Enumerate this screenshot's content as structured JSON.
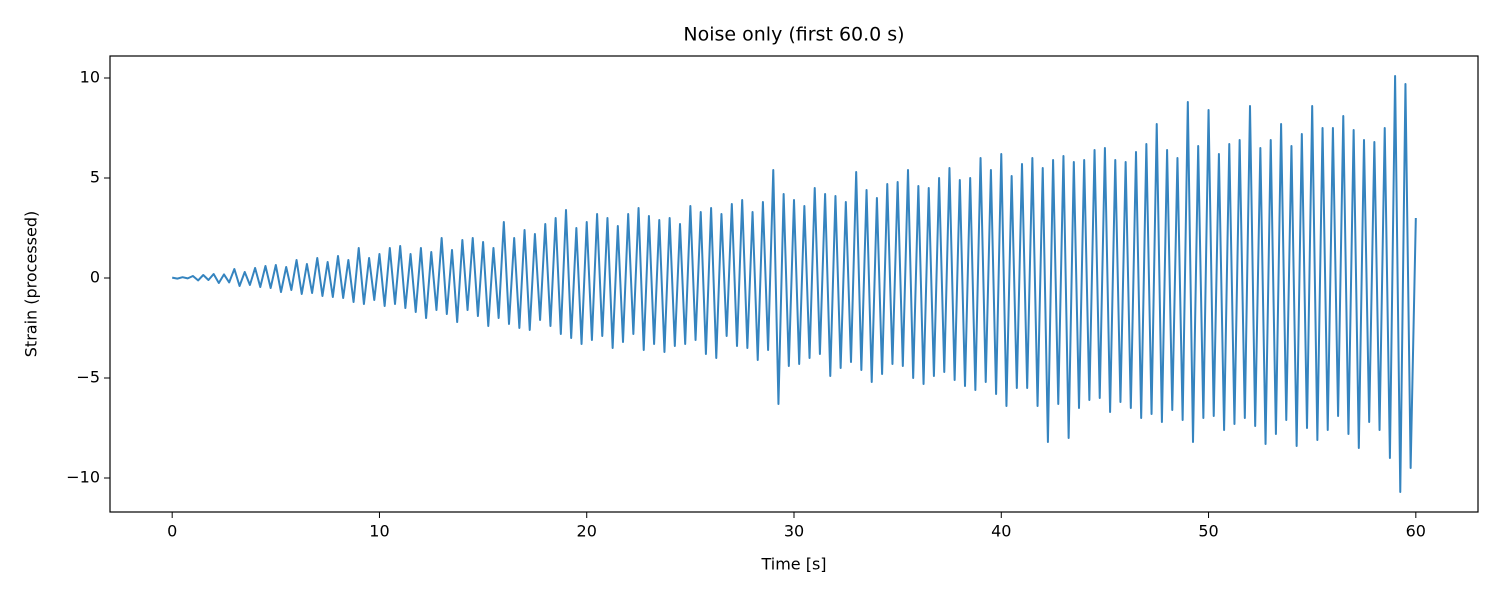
{
  "chart_data": {
    "type": "line",
    "title": "Noise only (first 60.0 s)",
    "x_label": "Time [s]",
    "y_label": "Strain (processed)",
    "color": "#3584bf",
    "xlim": [
      -3,
      63
    ],
    "ylim": [
      -11.7,
      11.1
    ],
    "xticks": [
      0,
      10,
      20,
      30,
      40,
      50,
      60
    ],
    "yticks": [
      {
        "value": -10,
        "label": "−10"
      },
      {
        "value": -5,
        "label": "−5"
      },
      0,
      5,
      10
    ],
    "x": [
      0,
      0.25,
      0.5,
      0.75,
      1,
      1.25,
      1.5,
      1.75,
      2,
      2.25,
      2.5,
      2.75,
      3,
      3.25,
      3.5,
      3.75,
      4,
      4.25,
      4.5,
      4.75,
      5,
      5.25,
      5.5,
      5.75,
      6,
      6.25,
      6.5,
      6.75,
      7,
      7.25,
      7.5,
      7.75,
      8,
      8.25,
      8.5,
      8.75,
      9,
      9.25,
      9.5,
      9.75,
      10,
      10.25,
      10.5,
      10.75,
      11,
      11.25,
      11.5,
      11.75,
      12,
      12.25,
      12.5,
      12.75,
      13,
      13.25,
      13.5,
      13.75,
      14,
      14.25,
      14.5,
      14.75,
      15,
      15.25,
      15.5,
      15.75,
      16,
      16.25,
      16.5,
      16.75,
      17,
      17.25,
      17.5,
      17.75,
      18,
      18.25,
      18.5,
      18.75,
      19,
      19.25,
      19.5,
      19.75,
      20,
      20.25,
      20.5,
      20.75,
      21,
      21.25,
      21.5,
      21.75,
      22,
      22.25,
      22.5,
      22.75,
      23,
      23.25,
      23.5,
      23.75,
      24,
      24.25,
      24.5,
      24.75,
      25,
      25.25,
      25.5,
      25.75,
      26,
      26.25,
      26.5,
      26.75,
      27,
      27.25,
      27.5,
      27.75,
      28,
      28.25,
      28.5,
      28.75,
      29,
      29.25,
      29.5,
      29.75,
      30,
      30.25,
      30.5,
      30.75,
      31,
      31.25,
      31.5,
      31.75,
      32,
      32.25,
      32.5,
      32.75,
      33,
      33.25,
      33.5,
      33.75,
      34,
      34.25,
      34.5,
      34.75,
      35,
      35.25,
      35.5,
      35.75,
      36,
      36.25,
      36.5,
      36.75,
      37,
      37.25,
      37.5,
      37.75,
      38,
      38.25,
      38.5,
      38.75,
      39,
      39.25,
      39.5,
      39.75,
      40,
      40.25,
      40.5,
      40.75,
      41,
      41.25,
      41.5,
      41.75,
      42,
      42.25,
      42.5,
      42.75,
      43,
      43.25,
      43.5,
      43.75,
      44,
      44.25,
      44.5,
      44.75,
      45,
      45.25,
      45.5,
      45.75,
      46,
      46.25,
      46.5,
      46.75,
      47,
      47.25,
      47.5,
      47.75,
      48,
      48.25,
      48.5,
      48.75,
      49,
      49.25,
      49.5,
      49.75,
      50,
      50.25,
      50.5,
      50.75,
      51,
      51.25,
      51.5,
      51.75,
      52,
      52.25,
      52.5,
      52.75,
      53,
      53.25,
      53.5,
      53.75,
      54,
      54.25,
      54.5,
      54.75,
      55,
      55.25,
      55.5,
      55.75,
      56,
      56.25,
      56.5,
      56.75,
      57,
      57.25,
      57.5,
      57.75,
      58,
      58.25,
      58.5,
      58.75,
      59,
      59.25,
      59.5,
      59.75,
      60
    ],
    "values": [
      0.02,
      -0.03,
      0.04,
      -0.02,
      0.1,
      -0.12,
      0.15,
      -0.1,
      0.2,
      -0.25,
      0.18,
      -0.22,
      0.45,
      -0.4,
      0.3,
      -0.35,
      0.5,
      -0.45,
      0.6,
      -0.5,
      0.65,
      -0.7,
      0.55,
      -0.6,
      0.9,
      -0.8,
      0.7,
      -0.75,
      1.0,
      -0.9,
      0.8,
      -0.95,
      1.1,
      -1.0,
      0.9,
      -1.2,
      1.5,
      -1.3,
      1.0,
      -1.1,
      1.2,
      -1.4,
      1.5,
      -1.3,
      1.6,
      -1.5,
      1.2,
      -1.7,
      1.5,
      -2.0,
      1.3,
      -1.6,
      2.0,
      -1.8,
      1.4,
      -2.2,
      1.9,
      -1.6,
      2.0,
      -1.9,
      1.8,
      -2.4,
      1.5,
      -2.0,
      2.8,
      -2.3,
      2.0,
      -2.5,
      2.4,
      -2.6,
      2.2,
      -2.1,
      2.7,
      -2.4,
      3.0,
      -2.8,
      3.4,
      -3.0,
      2.5,
      -3.3,
      2.8,
      -3.1,
      3.2,
      -2.9,
      3.0,
      -3.5,
      2.6,
      -3.2,
      3.2,
      -2.8,
      3.5,
      -3.6,
      3.1,
      -3.3,
      2.9,
      -3.7,
      3.0,
      -3.4,
      2.7,
      -3.3,
      3.6,
      -3.1,
      3.3,
      -3.8,
      3.5,
      -4.0,
      3.2,
      -2.9,
      3.7,
      -3.4,
      3.9,
      -3.5,
      3.3,
      -4.1,
      3.8,
      -3.6,
      5.4,
      -6.3,
      4.2,
      -4.4,
      3.9,
      -4.3,
      3.6,
      -4.0,
      4.5,
      -3.8,
      4.2,
      -4.9,
      4.1,
      -4.5,
      3.8,
      -4.2,
      5.3,
      -4.6,
      4.4,
      -5.2,
      4.0,
      -4.8,
      4.7,
      -4.3,
      4.8,
      -4.4,
      5.4,
      -5.0,
      4.6,
      -5.3,
      4.5,
      -4.9,
      5.0,
      -4.7,
      5.5,
      -5.1,
      4.9,
      -5.4,
      5.0,
      -5.6,
      6.0,
      -5.2,
      5.4,
      -5.8,
      6.2,
      -6.4,
      5.1,
      -5.5,
      5.7,
      -5.5,
      6.0,
      -6.4,
      5.5,
      -8.2,
      5.9,
      -6.3,
      6.1,
      -8.0,
      5.8,
      -6.5,
      5.9,
      -6.1,
      6.4,
      -6.0,
      6.5,
      -6.7,
      5.9,
      -6.2,
      5.8,
      -6.5,
      6.3,
      -7.0,
      6.7,
      -6.8,
      7.7,
      -7.2,
      6.4,
      -6.6,
      6.0,
      -7.1,
      8.8,
      -8.2,
      6.6,
      -7.0,
      8.4,
      -6.9,
      6.2,
      -7.6,
      6.7,
      -7.3,
      6.9,
      -7.0,
      8.6,
      -7.4,
      6.5,
      -8.3,
      6.9,
      -7.8,
      7.7,
      -7.1,
      6.6,
      -8.4,
      7.2,
      -7.5,
      8.6,
      -8.1,
      7.5,
      -7.6,
      7.5,
      -6.9,
      8.1,
      -7.8,
      7.4,
      -8.5,
      6.9,
      -7.2,
      6.8,
      -7.6,
      7.5,
      -9.0,
      10.1,
      -10.7,
      9.7,
      -9.5,
      3.0
    ]
  }
}
